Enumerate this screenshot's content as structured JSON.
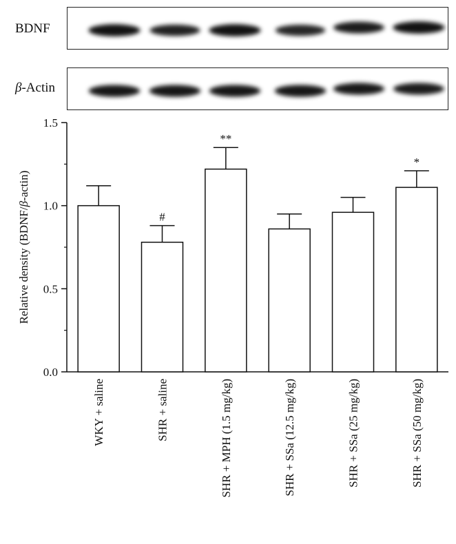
{
  "blots": [
    {
      "label": "BDNF",
      "band_intensity": [
        0.95,
        0.8,
        0.95,
        0.75,
        0.85,
        0.95
      ]
    },
    {
      "label_prefix": "β",
      "label_suffix": "-Actin",
      "band_intensity": [
        0.9,
        0.9,
        0.9,
        0.9,
        0.88,
        0.85
      ]
    }
  ],
  "chart_data": {
    "type": "bar",
    "categories": [
      "WKY + saline",
      "SHR + saline",
      "SHR + MPH (1.5 mg/kg)",
      "SHR + SSa (12.5 mg/kg)",
      "SHR + SSa (25 mg/kg)",
      "SHR + SSa (50 mg/kg)"
    ],
    "values": [
      1.0,
      0.78,
      1.22,
      0.86,
      0.96,
      1.11
    ],
    "errors": [
      0.12,
      0.1,
      0.13,
      0.09,
      0.09,
      0.1
    ],
    "annotations": [
      "",
      "#",
      "**",
      "",
      "",
      "*"
    ],
    "ylabel_prefix": "Relative density (BDNF/",
    "ylabel_greek": "β",
    "ylabel_suffix": "-actin)",
    "ylim": [
      0,
      1.5
    ],
    "yticks": [
      0.0,
      0.5,
      1.0,
      1.5
    ],
    "ytick_labels": [
      "0.0",
      "0.5",
      "1.0",
      "1.5"
    ],
    "bar_color": "#ffffff",
    "edge_color": "#111111",
    "grid": false
  }
}
